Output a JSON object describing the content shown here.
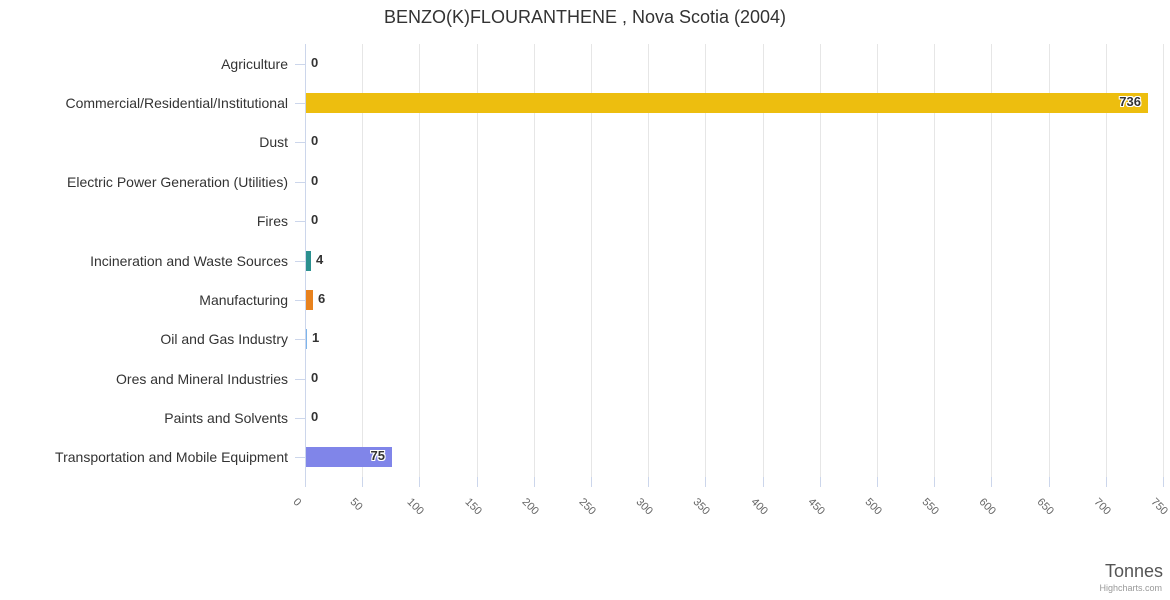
{
  "chart_data": {
    "type": "bar",
    "title": "BENZO(K)FLOURANTHENE , Nova Scotia (2004)",
    "categories": [
      "Agriculture",
      "Commercial/Residential/Institutional",
      "Dust",
      "Electric Power Generation (Utilities)",
      "Fires",
      "Incineration and Waste Sources",
      "Manufacturing",
      "Oil and Gas Industry",
      "Ores and Mineral Industries",
      "Paints and Solvents",
      "Transportation and Mobile Equipment"
    ],
    "values": [
      0,
      736,
      0,
      0,
      0,
      4,
      6,
      1,
      0,
      0,
      75
    ],
    "colors": [
      "#7cb5ec",
      "#edbe0f",
      "#7cb5ec",
      "#7cb5ec",
      "#7cb5ec",
      "#2b908f",
      "#e8821e",
      "#7cb5ec",
      "#7cb5ec",
      "#7cb5ec",
      "#8085e9"
    ],
    "xlabel": "Tonnes",
    "ylabel": "",
    "xlim": [
      0,
      750
    ],
    "tick_interval": 50,
    "x_tick_labels": [
      "0",
      "50",
      "100",
      "150",
      "200",
      "250",
      "300",
      "350",
      "400",
      "450",
      "500",
      "550",
      "600",
      "650",
      "700",
      "750"
    ],
    "legend": "none",
    "grid": "vertical-only",
    "credit": "Highcharts.com",
    "palette": {
      "axis_line": "#ccd6eb",
      "gridline": "#e6e6e6",
      "axis_label": "#666666",
      "text": "#333333",
      "credit_text": "#999999",
      "background": "#ffffff"
    }
  }
}
